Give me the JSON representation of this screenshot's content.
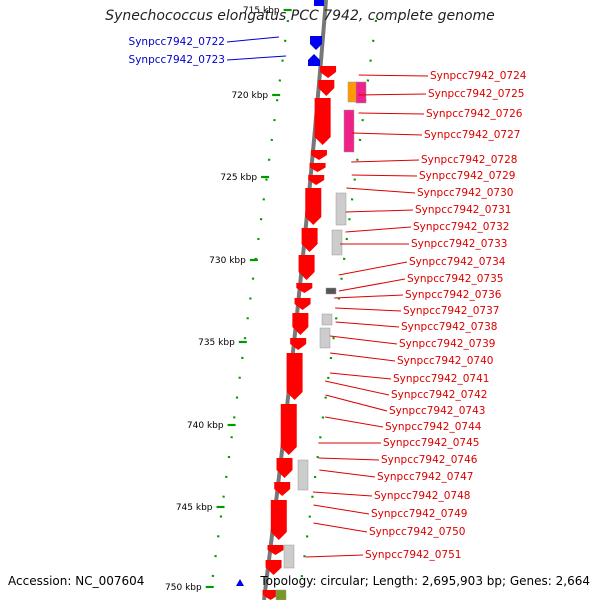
{
  "title": "Synechococcus elongatus PCC 7942, complete genome",
  "footer": {
    "accession": "Accession: NC_007604",
    "topology": "Topology: circular; Length: 2,695,903 bp; Genes: 2,664"
  },
  "colors": {
    "backbone": "#777777",
    "plus_strand_gene": "#0000ee",
    "minus_strand_gene": "#ff0000",
    "cds_grey": "#bbbbbb",
    "cds_dark": "#555555",
    "cds_orange": "#ff9900",
    "cds_magenta": "#ee2288",
    "cds_green": "#779922",
    "tick_dot": "#009900"
  },
  "scale_ticks": [
    "715 kbp",
    "720 kbp",
    "725 kbp",
    "730 kbp",
    "735 kbp",
    "740 kbp",
    "745 kbp",
    "750 kbp"
  ],
  "left_labels": [
    "Synpcc7942_0722",
    "Synpcc7942_0723"
  ],
  "right_labels": [
    "Synpcc7942_0724",
    "Synpcc7942_0725",
    "Synpcc7942_0726",
    "Synpcc7942_0727",
    "Synpcc7942_0728",
    "Synpcc7942_0729",
    "Synpcc7942_0730",
    "Synpcc7942_0731",
    "Synpcc7942_0732",
    "Synpcc7942_0733",
    "Synpcc7942_0734",
    "Synpcc7942_0735",
    "Synpcc7942_0736",
    "Synpcc7942_0737",
    "Synpcc7942_0738",
    "Synpcc7942_0739",
    "Synpcc7942_0740",
    "Synpcc7942_0741",
    "Synpcc7942_0742",
    "Synpcc7942_0743",
    "Synpcc7942_0744",
    "Synpcc7942_0745",
    "Synpcc7942_0746",
    "Synpcc7942_0747",
    "Synpcc7942_0748",
    "Synpcc7942_0749",
    "Synpcc7942_0750",
    "Synpcc7942_0751"
  ]
}
